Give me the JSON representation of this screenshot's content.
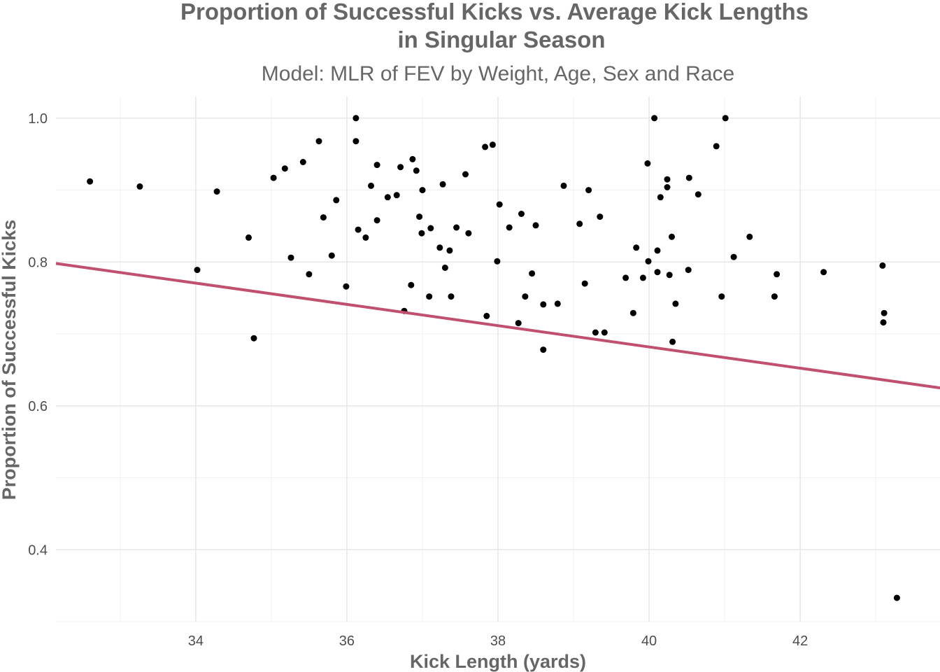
{
  "chart_data": {
    "type": "scatter",
    "title_lines": [
      "Proportion of Successful Kicks vs. Average Kick Lengths",
      "in Singular Season"
    ],
    "subtitle": "Model: MLR of FEV by Weight, Age, Sex and Race",
    "xlabel": "Kick Length (yards)",
    "ylabel": "Proportion of Successful Kicks",
    "xlim": [
      32.15,
      43.85
    ],
    "ylim": [
      0.3,
      1.03
    ],
    "x_ticks": [
      34,
      36,
      38,
      40,
      42
    ],
    "y_ticks": [
      0.4,
      0.6,
      0.8,
      1.0
    ],
    "x_tick_labels": [
      "34",
      "36",
      "38",
      "40",
      "42"
    ],
    "y_tick_labels": [
      "0.4",
      "0.6",
      "0.8",
      "1.0"
    ],
    "grid": true,
    "point_color": "#000000",
    "line_color": "#c0506e",
    "fit_line": {
      "x": [
        32.15,
        43.85
      ],
      "y": [
        0.798,
        0.625
      ]
    },
    "points": [
      [
        32.6,
        0.912
      ],
      [
        33.26,
        0.905
      ],
      [
        34.02,
        0.789
      ],
      [
        34.28,
        0.898
      ],
      [
        34.7,
        0.834
      ],
      [
        34.77,
        0.694
      ],
      [
        35.03,
        0.917
      ],
      [
        35.18,
        0.93
      ],
      [
        35.26,
        0.806
      ],
      [
        35.42,
        0.939
      ],
      [
        35.5,
        0.783
      ],
      [
        35.63,
        0.968
      ],
      [
        35.69,
        0.862
      ],
      [
        35.8,
        0.809
      ],
      [
        35.86,
        0.886
      ],
      [
        35.99,
        0.766
      ],
      [
        36.12,
        1.0
      ],
      [
        36.12,
        0.968
      ],
      [
        36.15,
        0.845
      ],
      [
        36.25,
        0.834
      ],
      [
        36.32,
        0.906
      ],
      [
        36.4,
        0.935
      ],
      [
        36.4,
        0.858
      ],
      [
        36.54,
        0.89
      ],
      [
        36.66,
        0.893
      ],
      [
        36.71,
        0.932
      ],
      [
        36.76,
        0.732
      ],
      [
        36.85,
        0.768
      ],
      [
        36.87,
        0.943
      ],
      [
        36.92,
        0.927
      ],
      [
        36.96,
        0.863
      ],
      [
        36.99,
        0.84
      ],
      [
        37.0,
        0.9
      ],
      [
        37.09,
        0.752
      ],
      [
        37.11,
        0.847
      ],
      [
        37.23,
        0.82
      ],
      [
        37.27,
        0.908
      ],
      [
        37.3,
        0.792
      ],
      [
        37.36,
        0.816
      ],
      [
        37.38,
        0.752
      ],
      [
        37.45,
        0.848
      ],
      [
        37.57,
        0.922
      ],
      [
        37.61,
        0.84
      ],
      [
        37.83,
        0.96
      ],
      [
        37.85,
        0.725
      ],
      [
        37.93,
        0.963
      ],
      [
        37.99,
        0.801
      ],
      [
        38.02,
        0.88
      ],
      [
        38.15,
        0.848
      ],
      [
        38.27,
        0.715
      ],
      [
        38.31,
        0.867
      ],
      [
        38.36,
        0.752
      ],
      [
        38.45,
        0.784
      ],
      [
        38.5,
        0.851
      ],
      [
        38.6,
        0.741
      ],
      [
        38.6,
        0.678
      ],
      [
        38.79,
        0.742
      ],
      [
        38.87,
        0.906
      ],
      [
        39.08,
        0.853
      ],
      [
        39.15,
        0.77
      ],
      [
        39.2,
        0.9
      ],
      [
        39.29,
        0.702
      ],
      [
        39.35,
        0.863
      ],
      [
        39.41,
        0.702
      ],
      [
        39.69,
        0.778
      ],
      [
        39.79,
        0.729
      ],
      [
        39.83,
        0.82
      ],
      [
        39.92,
        0.778
      ],
      [
        39.98,
        0.937
      ],
      [
        39.99,
        0.801
      ],
      [
        40.07,
        1.0
      ],
      [
        40.11,
        0.816
      ],
      [
        40.11,
        0.786
      ],
      [
        40.15,
        0.89
      ],
      [
        40.24,
        0.915
      ],
      [
        40.24,
        0.904
      ],
      [
        40.27,
        0.782
      ],
      [
        40.3,
        0.835
      ],
      [
        40.31,
        0.689
      ],
      [
        40.35,
        0.742
      ],
      [
        40.52,
        0.789
      ],
      [
        40.53,
        0.917
      ],
      [
        40.65,
        0.894
      ],
      [
        40.89,
        0.961
      ],
      [
        40.96,
        0.752
      ],
      [
        41.01,
        1.0
      ],
      [
        41.12,
        0.807
      ],
      [
        41.33,
        0.835
      ],
      [
        41.66,
        0.752
      ],
      [
        41.69,
        0.783
      ],
      [
        42.31,
        0.786
      ],
      [
        43.09,
        0.795
      ],
      [
        43.1,
        0.716
      ],
      [
        43.11,
        0.729
      ],
      [
        43.28,
        0.333
      ]
    ]
  }
}
